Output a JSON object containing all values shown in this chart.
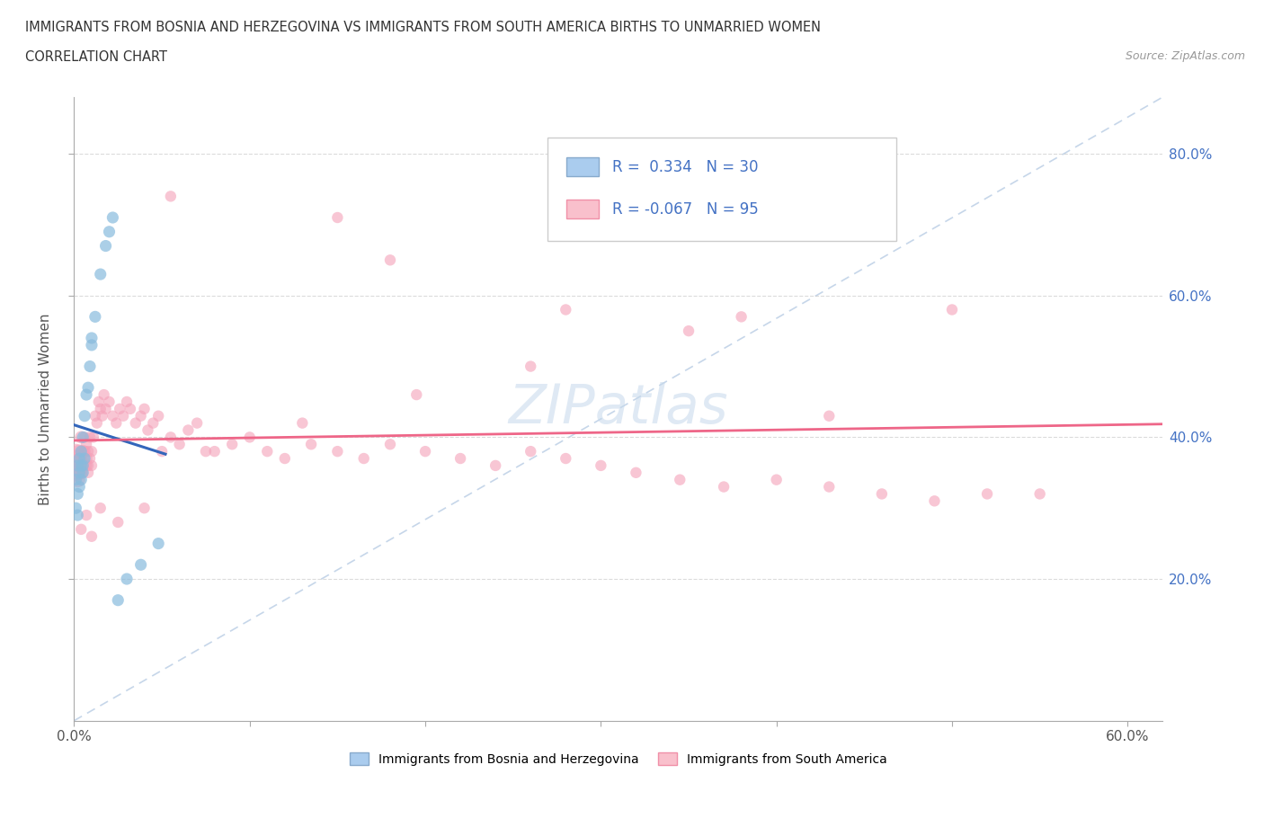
{
  "title_line1": "IMMIGRANTS FROM BOSNIA AND HERZEGOVINA VS IMMIGRANTS FROM SOUTH AMERICA BIRTHS TO UNMARRIED WOMEN",
  "title_line2": "CORRELATION CHART",
  "source_text": "Source: ZipAtlas.com",
  "ylabel": "Births to Unmarried Women",
  "xlim_max": 0.62,
  "ylim_max": 0.88,
  "watermark": "ZIPatlas",
  "blue_R": 0.334,
  "blue_N": 30,
  "pink_R": -0.067,
  "pink_N": 95,
  "blue_scatter_color": "#88bbdd",
  "pink_scatter_color": "#f4a0b8",
  "blue_line_color": "#3366bb",
  "pink_line_color": "#ee6688",
  "diag_color": "#b8cce4",
  "grid_color": "#cccccc",
  "legend_label_blue": "Immigrants from Bosnia and Herzegovina",
  "legend_label_pink": "Immigrants from South America",
  "blue_x": [
    0.001,
    0.001,
    0.002,
    0.002,
    0.002,
    0.003,
    0.003,
    0.003,
    0.004,
    0.004,
    0.004,
    0.005,
    0.005,
    0.005,
    0.006,
    0.006,
    0.007,
    0.008,
    0.009,
    0.01,
    0.01,
    0.012,
    0.015,
    0.018,
    0.02,
    0.022,
    0.025,
    0.03,
    0.038,
    0.048
  ],
  "blue_y": [
    0.34,
    0.3,
    0.36,
    0.32,
    0.29,
    0.35,
    0.33,
    0.37,
    0.36,
    0.34,
    0.38,
    0.36,
    0.35,
    0.4,
    0.37,
    0.43,
    0.46,
    0.47,
    0.5,
    0.54,
    0.53,
    0.57,
    0.63,
    0.67,
    0.69,
    0.71,
    0.17,
    0.2,
    0.22,
    0.25
  ],
  "blue_sizes": [
    80,
    80,
    90,
    80,
    80,
    85,
    80,
    80,
    80,
    80,
    80,
    80,
    80,
    80,
    80,
    80,
    80,
    80,
    80,
    80,
    80,
    80,
    80,
    80,
    80,
    80,
    80,
    80,
    80,
    80
  ],
  "pink_x": [
    0.001,
    0.001,
    0.001,
    0.002,
    0.002,
    0.002,
    0.003,
    0.003,
    0.003,
    0.004,
    0.004,
    0.004,
    0.005,
    0.005,
    0.005,
    0.006,
    0.006,
    0.007,
    0.007,
    0.007,
    0.008,
    0.008,
    0.008,
    0.009,
    0.009,
    0.01,
    0.01,
    0.011,
    0.012,
    0.013,
    0.014,
    0.015,
    0.016,
    0.017,
    0.018,
    0.02,
    0.022,
    0.024,
    0.026,
    0.028,
    0.03,
    0.032,
    0.035,
    0.038,
    0.04,
    0.042,
    0.045,
    0.048,
    0.05,
    0.055,
    0.06,
    0.065,
    0.07,
    0.08,
    0.09,
    0.1,
    0.11,
    0.12,
    0.135,
    0.15,
    0.165,
    0.18,
    0.2,
    0.22,
    0.24,
    0.26,
    0.28,
    0.3,
    0.32,
    0.345,
    0.37,
    0.4,
    0.43,
    0.46,
    0.49,
    0.52,
    0.55,
    0.15,
    0.055,
    0.18,
    0.28,
    0.38,
    0.5,
    0.43,
    0.35,
    0.26,
    0.195,
    0.13,
    0.075,
    0.04,
    0.025,
    0.015,
    0.01,
    0.007,
    0.004
  ],
  "pink_y": [
    0.36,
    0.35,
    0.38,
    0.37,
    0.34,
    0.36,
    0.35,
    0.38,
    0.37,
    0.36,
    0.4,
    0.37,
    0.38,
    0.36,
    0.35,
    0.38,
    0.4,
    0.37,
    0.36,
    0.39,
    0.38,
    0.36,
    0.35,
    0.4,
    0.37,
    0.38,
    0.36,
    0.4,
    0.43,
    0.42,
    0.45,
    0.44,
    0.43,
    0.46,
    0.44,
    0.45,
    0.43,
    0.42,
    0.44,
    0.43,
    0.45,
    0.44,
    0.42,
    0.43,
    0.44,
    0.41,
    0.42,
    0.43,
    0.38,
    0.4,
    0.39,
    0.41,
    0.42,
    0.38,
    0.39,
    0.4,
    0.38,
    0.37,
    0.39,
    0.38,
    0.37,
    0.39,
    0.38,
    0.37,
    0.36,
    0.38,
    0.37,
    0.36,
    0.35,
    0.34,
    0.33,
    0.34,
    0.33,
    0.32,
    0.31,
    0.32,
    0.32,
    0.71,
    0.74,
    0.65,
    0.58,
    0.57,
    0.58,
    0.43,
    0.55,
    0.5,
    0.46,
    0.42,
    0.38,
    0.3,
    0.28,
    0.3,
    0.26,
    0.29,
    0.27
  ],
  "pink_sizes": [
    350,
    200,
    150,
    200,
    150,
    120,
    150,
    120,
    100,
    120,
    100,
    90,
    100,
    90,
    80,
    90,
    80,
    90,
    80,
    80,
    80,
    80,
    80,
    80,
    80,
    80,
    80,
    80,
    80,
    80,
    80,
    80,
    80,
    80,
    80,
    80,
    80,
    80,
    80,
    80,
    80,
    80,
    80,
    80,
    80,
    80,
    80,
    80,
    80,
    80,
    80,
    80,
    80,
    80,
    80,
    80,
    80,
    80,
    80,
    80,
    80,
    80,
    80,
    80,
    80,
    80,
    80,
    80,
    80,
    80,
    80,
    80,
    80,
    80,
    80,
    80,
    80,
    80,
    80,
    80,
    80,
    80,
    80,
    80,
    80,
    80,
    80,
    80,
    80,
    80,
    80,
    80,
    80,
    80,
    80
  ]
}
